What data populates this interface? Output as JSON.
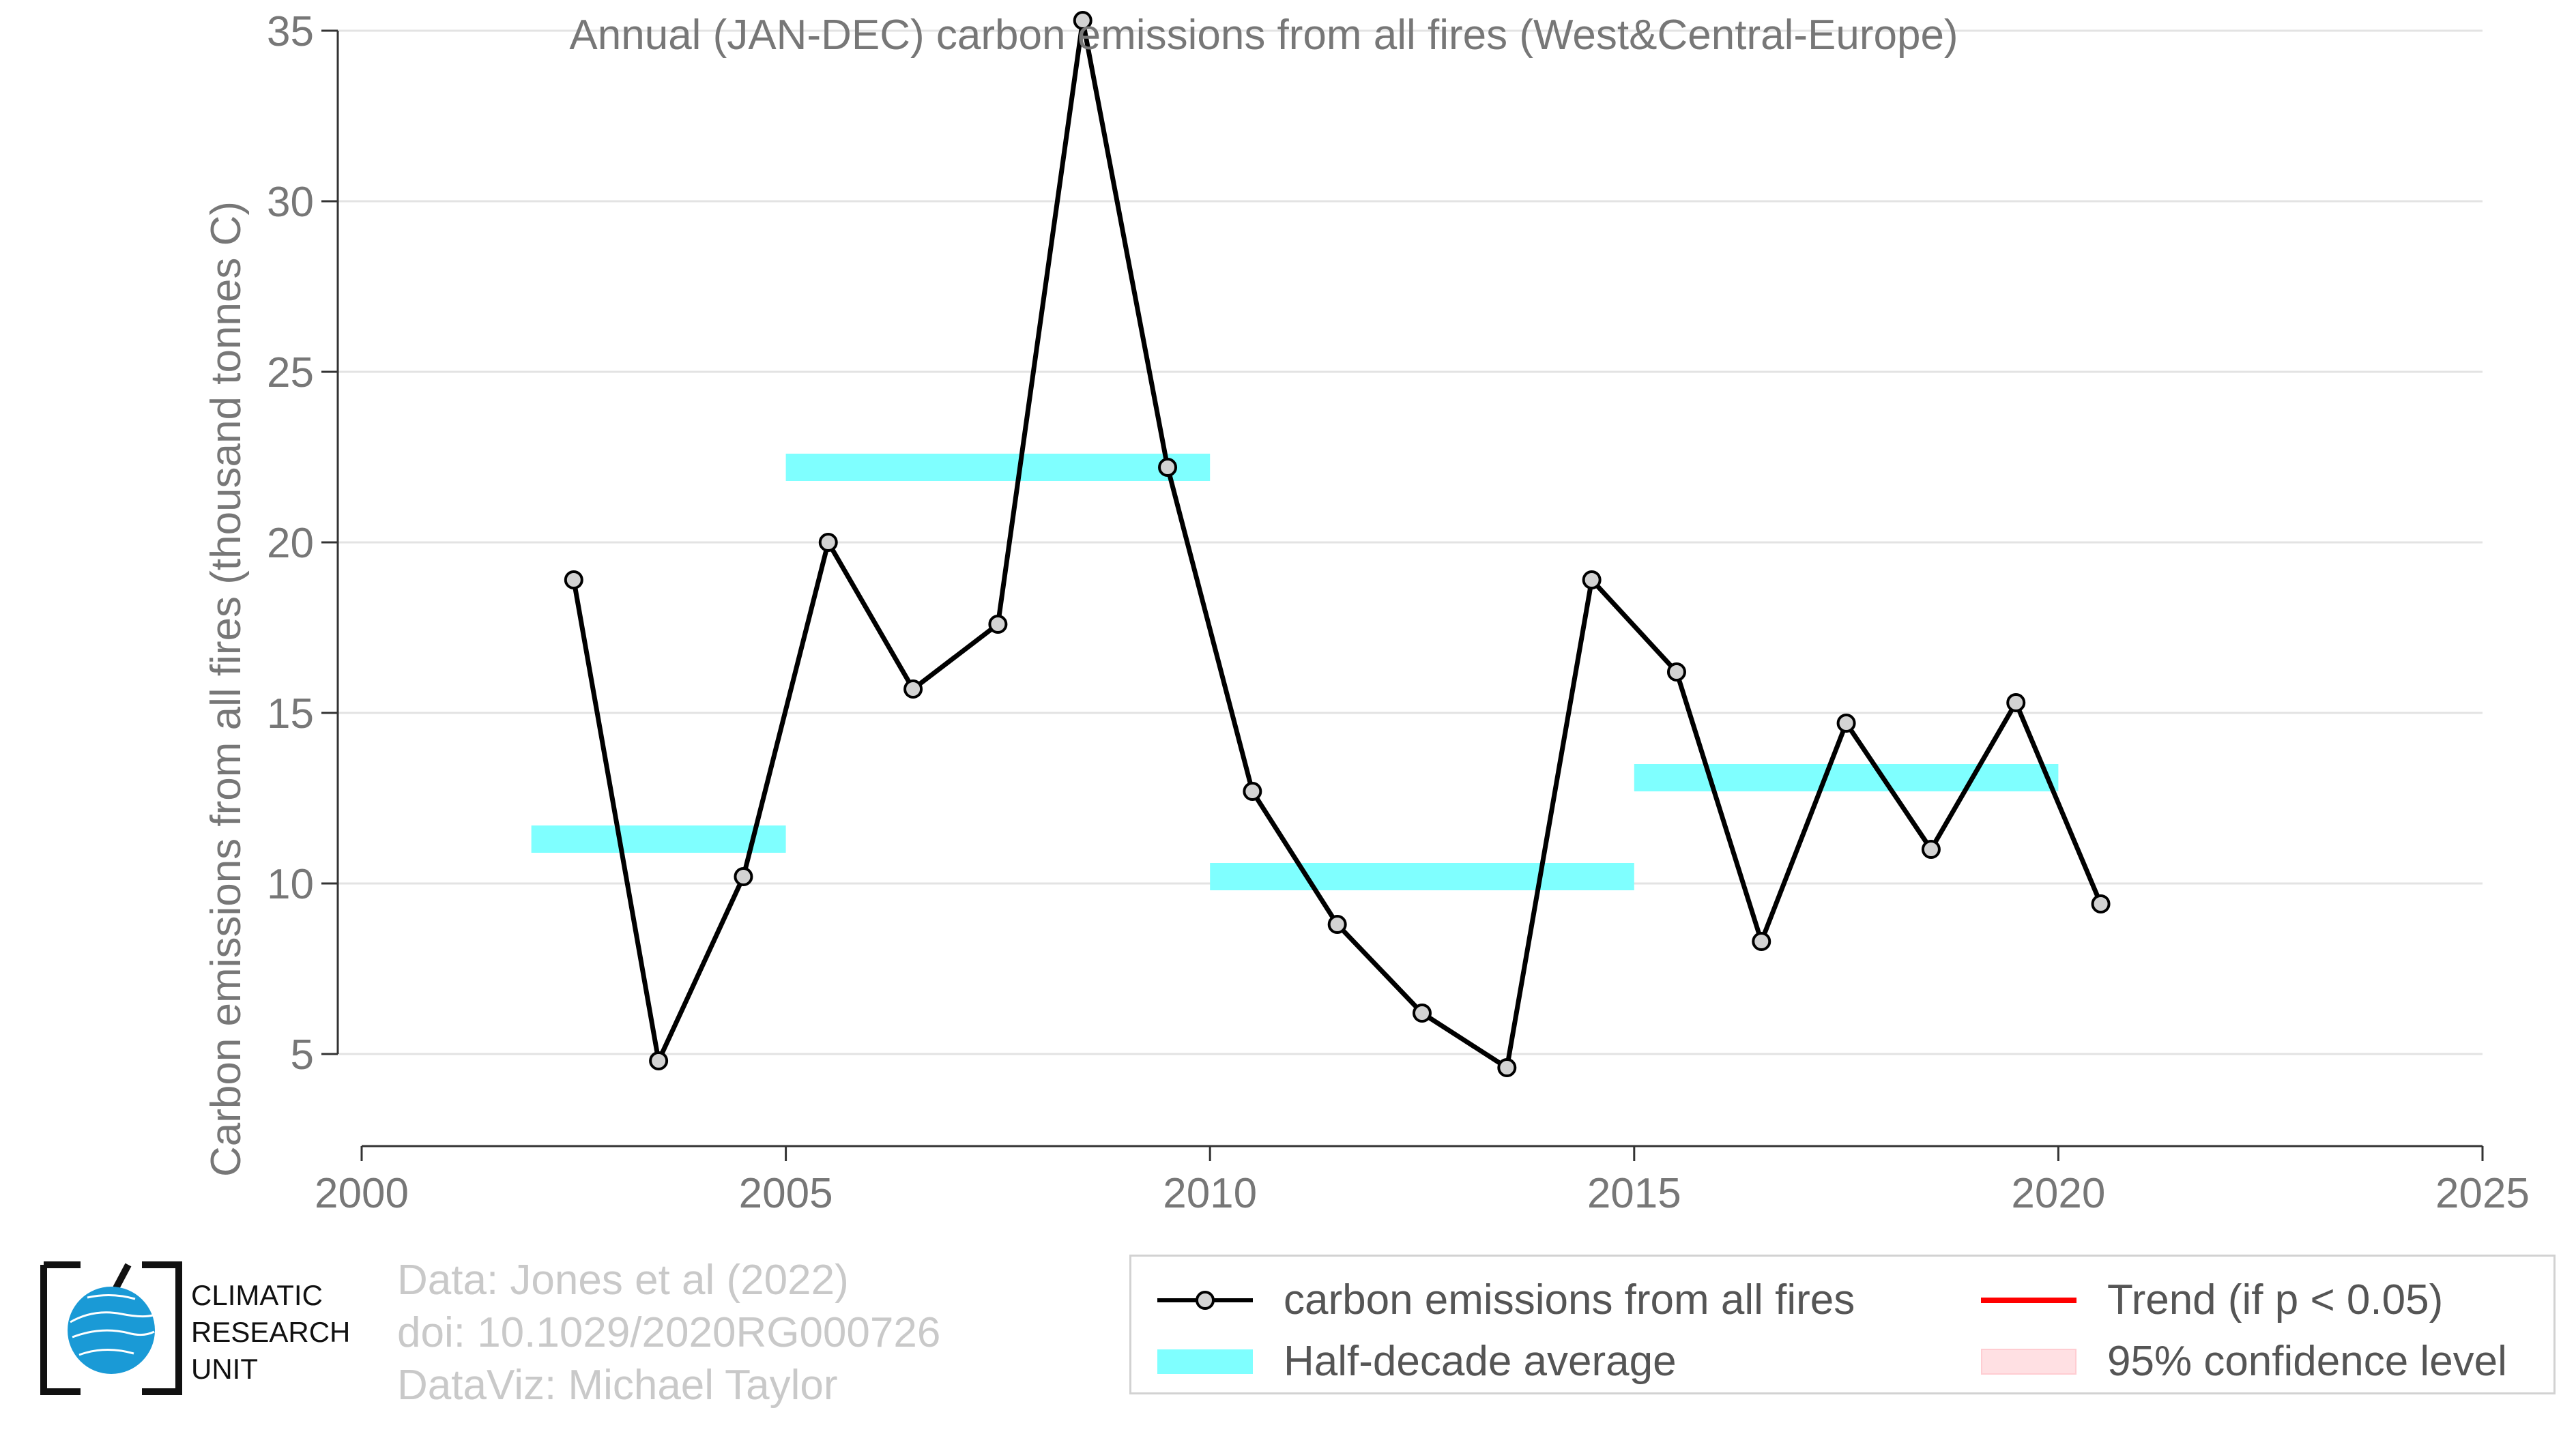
{
  "chart_data": {
    "type": "line",
    "title": "Annual (JAN-DEC) carbon emissions from all fires (West&Central-Europe)",
    "xlabel": "",
    "ylabel": "Carbon emissions from all fires (thousand tonnes C)",
    "xlim": [
      2000,
      2025
    ],
    "ylim": [
      2.3,
      35.5
    ],
    "xticks": [
      2000,
      2005,
      2010,
      2015,
      2020,
      2025
    ],
    "yticks": [
      5,
      10,
      15,
      20,
      25,
      30,
      35
    ],
    "grid": "horizontal",
    "legend_position": "bottom-right",
    "series": [
      {
        "name": "carbon emissions from all fires",
        "style": "line-with-markers",
        "color": "#000000",
        "marker_fill": "#d3d3d3",
        "x": [
          2002.5,
          2003.5,
          2004.5,
          2005.5,
          2006.5,
          2007.5,
          2008.5,
          2009.5,
          2010.5,
          2011.5,
          2012.5,
          2013.5,
          2014.5,
          2015.5,
          2016.5,
          2017.5,
          2018.5,
          2019.5,
          2020.5
        ],
        "y": [
          18.9,
          4.8,
          10.2,
          20.0,
          15.7,
          17.6,
          35.3,
          22.2,
          12.7,
          8.8,
          6.2,
          4.6,
          18.9,
          16.2,
          8.3,
          14.7,
          11.0,
          15.3,
          9.4
        ]
      },
      {
        "name": "Half-decade average",
        "style": "horizontal-bar",
        "color": "#7fffff",
        "segments": [
          {
            "x0": 2002,
            "x1": 2005,
            "y": 11.3
          },
          {
            "x0": 2005,
            "x1": 2010,
            "y": 22.2
          },
          {
            "x0": 2010,
            "x1": 2015,
            "y": 10.2
          },
          {
            "x0": 2015,
            "x1": 2020,
            "y": 13.1
          }
        ]
      }
    ],
    "legend": [
      {
        "label": "carbon emissions from all fires",
        "kind": "line-marker",
        "color": "#000000"
      },
      {
        "label": "Trend (if p < 0.05)",
        "kind": "line",
        "color": "#ff0000"
      },
      {
        "label": "Half-decade average",
        "kind": "thick-bar",
        "color": "#7fffff"
      },
      {
        "label": "95% confidence level",
        "kind": "box",
        "color": "#ffe0e3"
      }
    ]
  },
  "credits": {
    "line1": "Data: Jones et al (2022)",
    "line2": "doi: 10.1029/2020RG000726",
    "line3": "DataViz: Michael Taylor"
  },
  "logo": {
    "icon": "globe-icon",
    "line1": "CLIMATIC",
    "line2": "RESEARCH",
    "line3": "UNIT",
    "color": "#1a9ad6"
  }
}
